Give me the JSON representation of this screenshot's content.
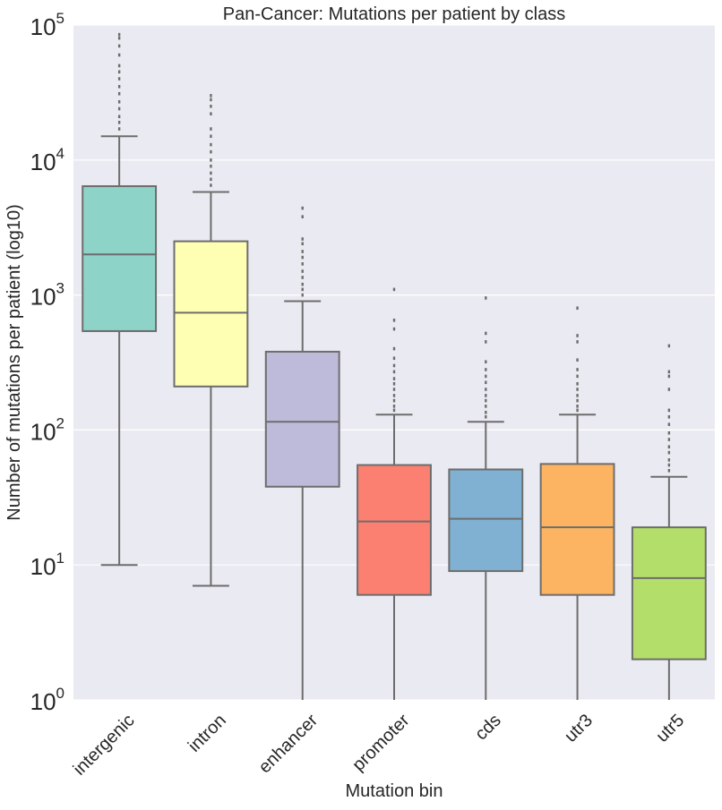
{
  "chart_data": {
    "type": "box",
    "title": "Pan-Cancer: Mutations per patient by class",
    "xlabel": "Mutation bin",
    "ylabel": "Number of mutations per patient (log10)",
    "yscale": "log",
    "ylim": [
      1,
      100000
    ],
    "grid": true,
    "y_ticks": [
      {
        "base": "10",
        "exp": "0",
        "value": 1
      },
      {
        "base": "10",
        "exp": "1",
        "value": 10
      },
      {
        "base": "10",
        "exp": "2",
        "value": 100
      },
      {
        "base": "10",
        "exp": "3",
        "value": 1000
      },
      {
        "base": "10",
        "exp": "4",
        "value": 10000
      },
      {
        "base": "10",
        "exp": "5",
        "value": 100000
      }
    ],
    "categories": [
      "intergenic",
      "intron",
      "enhancer",
      "promoter",
      "cds",
      "utr3",
      "utr5"
    ],
    "boxes": [
      {
        "name": "intergenic",
        "color": "#8dd3c7",
        "whislo": 10,
        "q1": 540,
        "med": 2000,
        "q3": 6400,
        "whishi": 15000,
        "fliers": [
          17000,
          19000,
          21000,
          24000,
          27000,
          31000,
          35000,
          40000,
          45000,
          50000,
          60000,
          70000,
          80000,
          85000
        ]
      },
      {
        "name": "intron",
        "color": "#ffffb3",
        "whislo": 7,
        "q1": 210,
        "med": 740,
        "q3": 2500,
        "whishi": 5800,
        "fliers": [
          6500,
          7200,
          8000,
          9000,
          10000,
          11500,
          13000,
          15000,
          17000,
          22000,
          25000,
          28000,
          30000
        ]
      },
      {
        "name": "enhancer",
        "color": "#bebada",
        "whislo": 1,
        "q1": 38,
        "med": 115,
        "q3": 380,
        "whishi": 900,
        "fliers": [
          1000,
          1100,
          1200,
          1350,
          1500,
          1700,
          1900,
          2100,
          2400,
          2600,
          3800,
          4400
        ]
      },
      {
        "name": "promoter",
        "color": "#fb8072",
        "whislo": 1,
        "q1": 6,
        "med": 21,
        "q3": 55,
        "whishi": 130,
        "fliers": [
          140,
          150,
          165,
          180,
          200,
          220,
          240,
          270,
          300,
          340,
          400,
          560,
          650,
          1100
        ]
      },
      {
        "name": "cds",
        "color": "#80b1d3",
        "whislo": 1,
        "q1": 9,
        "med": 22,
        "q3": 51,
        "whishi": 115,
        "fliers": [
          125,
          135,
          150,
          165,
          180,
          200,
          225,
          250,
          280,
          320,
          450,
          520,
          950
        ]
      },
      {
        "name": "utr3",
        "color": "#fdb462",
        "whislo": 1,
        "q1": 6,
        "med": 19,
        "q3": 56,
        "whishi": 130,
        "fliers": [
          140,
          150,
          165,
          180,
          200,
          220,
          250,
          280,
          330,
          450,
          500,
          800
        ]
      },
      {
        "name": "utr5",
        "color": "#b3de69",
        "whislo": 1,
        "q1": 2,
        "med": 8,
        "q3": 19,
        "whishi": 45,
        "fliers": [
          50,
          55,
          60,
          68,
          75,
          85,
          95,
          110,
          125,
          140,
          200,
          250,
          270,
          420
        ]
      }
    ]
  }
}
